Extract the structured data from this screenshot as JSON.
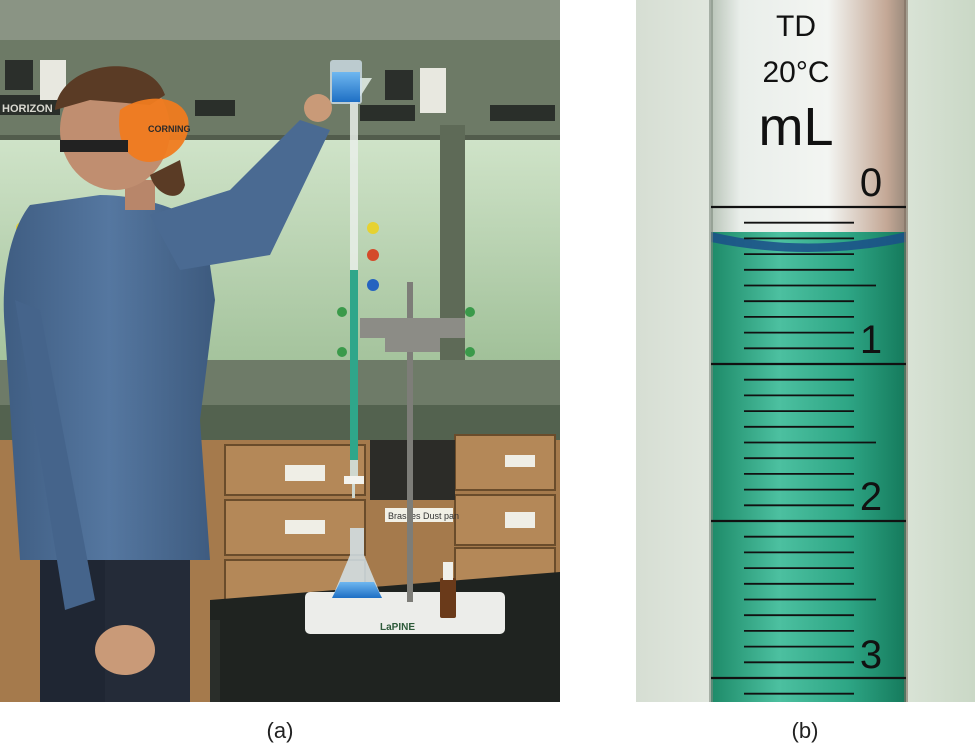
{
  "captions": {
    "a": "(a)",
    "b": "(b)"
  },
  "panel_a": {
    "goggles_text": "CORNING",
    "hood_brand": "HORIZON",
    "stand_brand": "LaPINE",
    "drawer_label": "Brasses Dust pan"
  },
  "panel_b": {
    "top_label_1": "TD",
    "top_label_2": "20°C",
    "unit": "mL",
    "major_ticks": [
      "0",
      "1",
      "2",
      "3"
    ]
  },
  "colors": {
    "liquid": "#2fa68a",
    "liquid_dark": "#168a6f",
    "lab_wall": "#5a6553",
    "shirt": "#4c6c93",
    "goggles": "#f07b1f",
    "bench": "#1f2320",
    "cabinet": "#a87b4d"
  }
}
